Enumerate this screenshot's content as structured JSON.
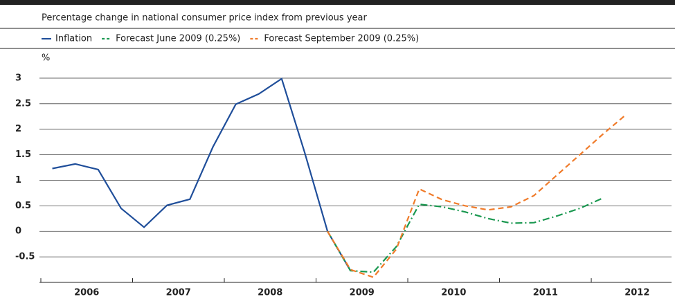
{
  "chart_data": {
    "type": "line",
    "title": "Percentage change in national consumer price index from previous year",
    "y_label": "%",
    "series": [
      {
        "name": "Inflation",
        "color": "#1f4e9a",
        "dash": "solid",
        "x": [
          2006.125,
          2006.375,
          2006.625,
          2006.875,
          2007.125,
          2007.375,
          2007.625,
          2007.875,
          2008.125,
          2008.375,
          2008.625,
          2008.875,
          2009.125,
          2009.375
        ],
        "values": [
          1.23,
          1.32,
          1.21,
          0.45,
          0.08,
          0.51,
          0.63,
          1.65,
          2.49,
          2.69,
          2.99,
          1.55,
          0.0,
          -0.77
        ]
      },
      {
        "name": "Forecast June 2009 (0.25%)",
        "color": "#1a9850",
        "dash": "dashdot",
        "x": [
          2009.125,
          2009.375,
          2009.625,
          2009.875,
          2010.125,
          2010.375,
          2010.625,
          2010.875,
          2011.125,
          2011.375,
          2011.625,
          2011.875,
          2012.125
        ],
        "values": [
          0.0,
          -0.77,
          -0.8,
          -0.3,
          0.53,
          0.48,
          0.38,
          0.25,
          0.16,
          0.17,
          0.3,
          0.45,
          0.65
        ]
      },
      {
        "name": "Forecast September 2009 (0.25%)",
        "color": "#f07b2a",
        "dash": "dashed",
        "x": [
          2009.125,
          2009.375,
          2009.625,
          2009.875,
          2010.125,
          2010.375,
          2010.625,
          2010.875,
          2011.125,
          2011.375,
          2011.625,
          2011.875,
          2012.125,
          2012.375
        ],
        "values": [
          0.0,
          -0.75,
          -0.9,
          -0.35,
          0.83,
          0.62,
          0.5,
          0.42,
          0.48,
          0.7,
          1.1,
          1.5,
          1.9,
          2.28
        ]
      }
    ],
    "xlim": [
      2005.985,
      2012.875
    ],
    "xticks": [
      {
        "value": 2006.5,
        "label": "2006"
      },
      {
        "value": 2007.5,
        "label": "2007"
      },
      {
        "value": 2008.5,
        "label": "2008"
      },
      {
        "value": 2009.5,
        "label": "2009"
      },
      {
        "value": 2010.5,
        "label": "2010"
      },
      {
        "value": 2011.5,
        "label": "2011"
      },
      {
        "value": 2012.5,
        "label": "2012"
      }
    ],
    "xtick_marks": [
      2006,
      2007,
      2008,
      2009,
      2010,
      2011,
      2012
    ],
    "ylim": [
      -1,
      3.25
    ],
    "yticks": [
      -0.5,
      0,
      0.5,
      1,
      1.5,
      2,
      2.5,
      3
    ],
    "grid": true
  }
}
